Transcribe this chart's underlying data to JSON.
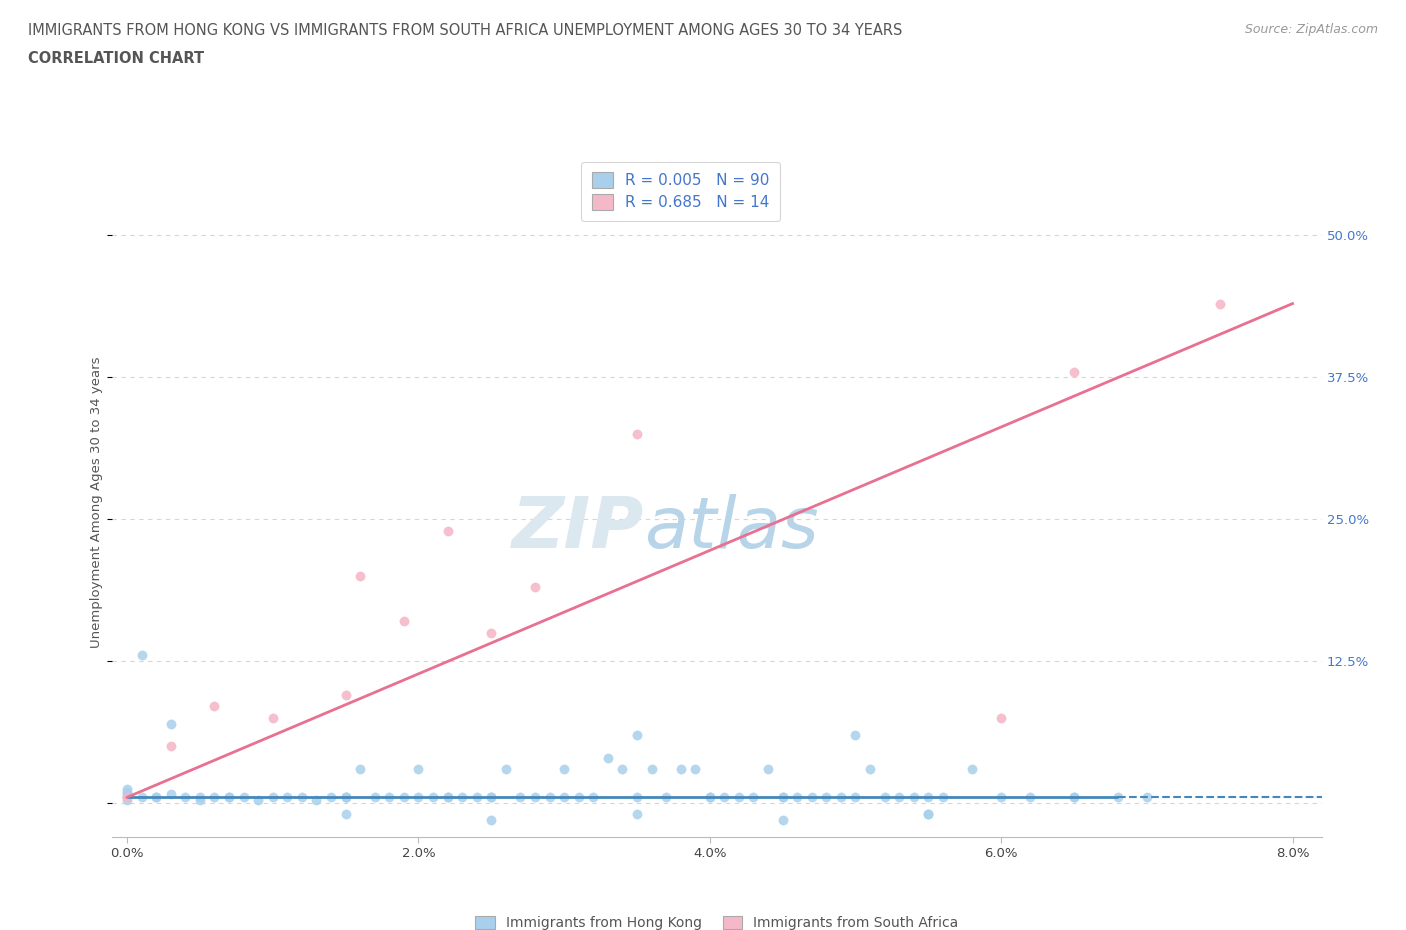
{
  "title_line1": "IMMIGRANTS FROM HONG KONG VS IMMIGRANTS FROM SOUTH AFRICA UNEMPLOYMENT AMONG AGES 30 TO 34 YEARS",
  "title_line2": "CORRELATION CHART",
  "source_text": "Source: ZipAtlas.com",
  "ylabel": "Unemployment Among Ages 30 to 34 years",
  "xlim": [
    -0.001,
    0.082
  ],
  "ylim": [
    -0.03,
    0.56
  ],
  "xticks": [
    0.0,
    0.02,
    0.04,
    0.06,
    0.08
  ],
  "xtick_labels": [
    "0.0%",
    "2.0%",
    "4.0%",
    "6.0%",
    "8.0%"
  ],
  "yticks": [
    0.0,
    0.125,
    0.25,
    0.375,
    0.5
  ],
  "ytick_labels": [
    "",
    "12.5%",
    "25.0%",
    "37.5%",
    "50.0%"
  ],
  "hk_color": "#a8d0ec",
  "hk_color_dark": "#4488bb",
  "sa_color": "#f5b8c8",
  "sa_color_dark": "#e87090",
  "hk_R": "0.005",
  "hk_N": "90",
  "sa_R": "0.685",
  "sa_N": "14",
  "watermark_zip": "ZIP",
  "watermark_atlas": "atlas",
  "legend_label_hk": "Immigrants from Hong Kong",
  "legend_label_sa": "Immigrants from South Africa",
  "title_color": "#555555",
  "axis_label_color": "#4477cc",
  "grid_color": "#cccccc",
  "hk_trendline_x": [
    0.0,
    0.075
  ],
  "hk_trendline_y": [
    0.005,
    0.005
  ],
  "sa_trendline_x": [
    0.0,
    0.08
  ],
  "sa_trendline_y": [
    0.005,
    0.44
  ],
  "hk_scatter_x": [
    0.0,
    0.0,
    0.0,
    0.0,
    0.0,
    0.0,
    0.002,
    0.003,
    0.004,
    0.005,
    0.006,
    0.007,
    0.008,
    0.009,
    0.01,
    0.011,
    0.012,
    0.013,
    0.014,
    0.015,
    0.015,
    0.016,
    0.017,
    0.018,
    0.019,
    0.02,
    0.02,
    0.021,
    0.022,
    0.022,
    0.023,
    0.024,
    0.025,
    0.026,
    0.027,
    0.028,
    0.029,
    0.03,
    0.03,
    0.031,
    0.032,
    0.033,
    0.034,
    0.035,
    0.036,
    0.037,
    0.038,
    0.039,
    0.04,
    0.04,
    0.041,
    0.042,
    0.043,
    0.044,
    0.045,
    0.046,
    0.047,
    0.048,
    0.049,
    0.05,
    0.05,
    0.051,
    0.052,
    0.053,
    0.054,
    0.055,
    0.056,
    0.058,
    0.06,
    0.062,
    0.065,
    0.068,
    0.001,
    0.003,
    0.005,
    0.007,
    0.015,
    0.025,
    0.035,
    0.045,
    0.001,
    0.002,
    0.065,
    0.035,
    0.045,
    0.055,
    0.015,
    0.025,
    0.055,
    0.07
  ],
  "hk_scatter_y": [
    0.005,
    0.008,
    0.01,
    0.012,
    0.005,
    0.003,
    0.005,
    0.008,
    0.005,
    0.003,
    0.005,
    0.005,
    0.005,
    0.003,
    0.005,
    0.005,
    0.005,
    0.003,
    0.005,
    0.005,
    0.005,
    0.03,
    0.005,
    0.005,
    0.005,
    0.03,
    0.005,
    0.005,
    0.005,
    0.005,
    0.005,
    0.005,
    0.005,
    0.03,
    0.005,
    0.005,
    0.005,
    0.03,
    0.005,
    0.005,
    0.005,
    0.04,
    0.03,
    0.06,
    0.03,
    0.005,
    0.03,
    0.03,
    0.005,
    0.005,
    0.005,
    0.005,
    0.005,
    0.03,
    0.005,
    0.005,
    0.005,
    0.005,
    0.005,
    0.06,
    0.005,
    0.03,
    0.005,
    0.005,
    0.005,
    0.005,
    0.005,
    0.03,
    0.005,
    0.005,
    0.005,
    0.005,
    0.13,
    0.07,
    0.005,
    0.005,
    0.005,
    0.005,
    0.005,
    0.005,
    0.005,
    0.005,
    0.005,
    -0.01,
    -0.015,
    -0.01,
    -0.01,
    -0.015,
    -0.01,
    0.005
  ],
  "sa_scatter_x": [
    0.0,
    0.003,
    0.006,
    0.01,
    0.015,
    0.016,
    0.019,
    0.022,
    0.025,
    0.028,
    0.035,
    0.06,
    0.065,
    0.075
  ],
  "sa_scatter_y": [
    0.005,
    0.05,
    0.085,
    0.075,
    0.095,
    0.2,
    0.16,
    0.24,
    0.15,
    0.19,
    0.325,
    0.075,
    0.38,
    0.44
  ]
}
